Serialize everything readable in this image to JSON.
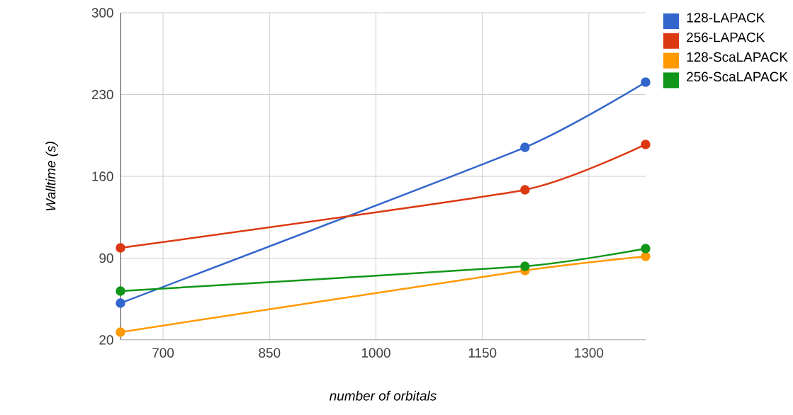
{
  "chart_data": {
    "type": "line",
    "xlabel": "number of orbitals",
    "ylabel": "Walltime (s)",
    "x": [
      640,
      1210,
      1380
    ],
    "series": [
      {
        "name": "128-LAPACK",
        "color": "#3366cc",
        "values": [
          51.5,
          184.8,
          240.6
        ]
      },
      {
        "name": "256-LAPACK",
        "color": "#dc3912",
        "values": [
          98.8,
          148.5,
          187.3
        ]
      },
      {
        "name": "128-ScaLAPACK",
        "color": "#ff9900",
        "values": [
          26.7,
          79.4,
          91.5
        ]
      },
      {
        "name": "256-ScaLAPACK",
        "color": "#109618",
        "values": [
          61.8,
          83,
          98.2
        ]
      }
    ],
    "xlim": [
      640,
      1380
    ],
    "ylim": [
      20,
      300
    ],
    "xticks": [
      700,
      850,
      1000,
      1150,
      1300
    ],
    "yticks": [
      20,
      90,
      160,
      230,
      300
    ],
    "grid": true,
    "legend": "top right",
    "marker": "circle",
    "line_style": "solid"
  }
}
